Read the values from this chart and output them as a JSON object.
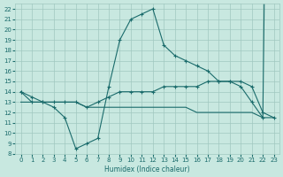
{
  "background_color": "#c8e8e0",
  "grid_color": "#a0c8c0",
  "line_color": "#1a6b6b",
  "xlabel": "Humidex (Indice chaleur)",
  "xlim": [
    -0.5,
    23.5
  ],
  "ylim": [
    8,
    22.5
  ],
  "yticks": [
    8,
    9,
    10,
    11,
    12,
    13,
    14,
    15,
    16,
    17,
    18,
    19,
    20,
    21,
    22
  ],
  "xticks": [
    0,
    1,
    2,
    3,
    4,
    5,
    6,
    7,
    8,
    9,
    10,
    11,
    12,
    13,
    14,
    15,
    16,
    17,
    18,
    19,
    20,
    21,
    22,
    23
  ],
  "line1_x": [
    0,
    1,
    2,
    3,
    4,
    5,
    6,
    7,
    8,
    9,
    10,
    11,
    12,
    13,
    14,
    15,
    16,
    17,
    18,
    19,
    20,
    21,
    22,
    23
  ],
  "line1_y": [
    14,
    13,
    13,
    12.5,
    11.5,
    8.5,
    9,
    9.5,
    14.5,
    19,
    21,
    21.5,
    22,
    18.5,
    17.5,
    17,
    16.5,
    16,
    15,
    15,
    14.5,
    13,
    11.5,
    99
  ],
  "line1_has_markers": true,
  "line2_x": [
    0,
    1,
    2,
    3,
    4,
    5,
    6,
    7,
    8,
    9,
    10,
    11,
    12,
    13,
    14,
    15,
    16,
    17,
    18,
    19,
    20,
    21,
    22,
    23
  ],
  "line2_y": [
    14,
    13.5,
    13,
    13,
    13,
    13,
    12.5,
    13,
    13.5,
    14,
    14,
    14,
    14,
    14.5,
    14.5,
    14.5,
    14.5,
    15,
    15,
    15,
    15,
    14.5,
    12,
    11.5
  ],
  "line2_has_markers": true,
  "line3_x": [
    0,
    1,
    2,
    3,
    4,
    5,
    6,
    7,
    8,
    9,
    10,
    11,
    12,
    13,
    14,
    15,
    16,
    17,
    18,
    19,
    20,
    21,
    22,
    23
  ],
  "line3_y": [
    13,
    13,
    13,
    13,
    13,
    13,
    12.5,
    12.5,
    12.5,
    12.5,
    12.5,
    12.5,
    12.5,
    12.5,
    12.5,
    12.5,
    12,
    12,
    12,
    12,
    12,
    12,
    11.5,
    11.5
  ],
  "line3_has_markers": false,
  "figwidth": 3.2,
  "figheight": 2.0,
  "dpi": 100
}
